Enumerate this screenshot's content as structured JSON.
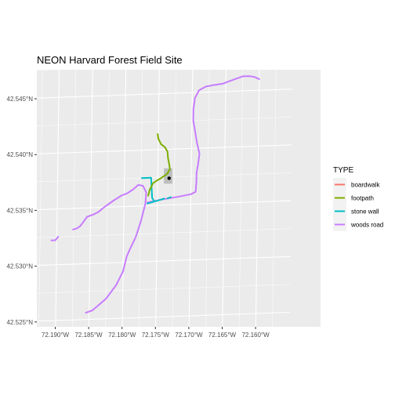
{
  "map": {
    "title": "NEON Harvard Forest Field Site",
    "panel_background": "#ebebeb",
    "grid_color": "#ffffff",
    "y_ticks": [
      {
        "lat": 42.525,
        "label": "42.525°N"
      },
      {
        "lat": 42.53,
        "label": "42.530°N"
      },
      {
        "lat": 42.535,
        "label": "42.535°N"
      },
      {
        "lat": 42.54,
        "label": "42.540°N"
      },
      {
        "lat": 42.545,
        "label": "42.545°N"
      }
    ],
    "x_ticks": [
      {
        "lon": -72.19,
        "label": "72.190°W"
      },
      {
        "lon": -72.185,
        "label": "72.185°W"
      },
      {
        "lon": -72.18,
        "label": "72.180°W"
      },
      {
        "lon": -72.175,
        "label": "72.175°W"
      },
      {
        "lon": -72.17,
        "label": "72.170°W"
      },
      {
        "lon": -72.165,
        "label": "72.165°W"
      },
      {
        "lon": -72.16,
        "label": "72.160°W"
      }
    ],
    "legend": {
      "title": "TYPE",
      "items": [
        {
          "name": "boardwalk",
          "color": "#f8766d"
        },
        {
          "name": "footpath",
          "color": "#7cae00"
        },
        {
          "name": "stone wall",
          "color": "#00bfc4"
        },
        {
          "name": "woods road",
          "color": "#c77cff"
        }
      ]
    },
    "features": {
      "plot_area": {
        "color": "#bdbdbd",
        "lon_range": [
          -72.1741,
          -72.1728
        ],
        "lat_range": [
          42.5369,
          42.5383
        ]
      },
      "tower_point": {
        "lon": -72.1733,
        "lat": 42.5374,
        "color": "#000000"
      },
      "woods_road": [
        [
          [
            -72.1855,
            42.5256
          ],
          [
            -72.1845,
            42.5258
          ],
          [
            -72.1825,
            42.5268
          ],
          [
            -72.181,
            42.528
          ],
          [
            -72.18,
            42.5292
          ],
          [
            -72.1795,
            42.5305
          ],
          [
            -72.179,
            42.5312
          ],
          [
            -72.1782,
            42.5322
          ],
          [
            -72.1775,
            42.5335
          ],
          [
            -72.1768,
            42.5352
          ],
          [
            -72.1767,
            42.5362
          ],
          [
            -72.1772,
            42.5368
          ],
          [
            -72.1779,
            42.5369
          ],
          [
            -72.1787,
            42.5365
          ],
          [
            -72.1795,
            42.5362
          ],
          [
            -72.1804,
            42.536
          ],
          [
            -72.1815,
            42.5356
          ],
          [
            -72.1825,
            42.5352
          ],
          [
            -72.1832,
            42.5349
          ],
          [
            -72.1838,
            42.5346
          ],
          [
            -72.1845,
            42.5344
          ],
          [
            -72.1855,
            42.5342
          ],
          [
            -72.186,
            42.5338
          ],
          [
            -72.1865,
            42.5334
          ],
          [
            -72.187,
            42.5332
          ],
          [
            -72.1876,
            42.5331
          ]
        ],
        [
          [
            -72.1765,
            42.5353
          ],
          [
            -72.1745,
            42.5355
          ],
          [
            -72.172,
            42.5357
          ],
          [
            -72.17,
            42.5359
          ],
          [
            -72.1693,
            42.5361
          ],
          [
            -72.1692,
            42.537
          ],
          [
            -72.1692,
            42.5378
          ],
          [
            -72.169,
            42.5385
          ],
          [
            -72.1688,
            42.5395
          ],
          [
            -72.1692,
            42.5405
          ],
          [
            -72.1695,
            42.5415
          ],
          [
            -72.1698,
            42.5425
          ],
          [
            -72.1698,
            42.5435
          ],
          [
            -72.1696,
            42.5445
          ],
          [
            -72.169,
            42.5452
          ],
          [
            -72.168,
            42.5455
          ],
          [
            -72.167,
            42.5456
          ],
          [
            -72.1655,
            42.5457
          ],
          [
            -72.1645,
            42.5459
          ],
          [
            -72.1635,
            42.5461
          ],
          [
            -72.1625,
            42.5463
          ],
          [
            -72.1615,
            42.5463
          ],
          [
            -72.1607,
            42.5462
          ],
          [
            -72.16,
            42.546
          ]
        ],
        [
          [
            -72.1908,
            42.5322
          ],
          [
            -72.1902,
            42.5322
          ],
          [
            -72.1898,
            42.5325
          ]
        ]
      ],
      "footpath": [
        [
          [
            -72.1751,
            42.5414
          ],
          [
            -72.175,
            42.541
          ],
          [
            -72.1746,
            42.5405
          ],
          [
            -72.174,
            42.5402
          ],
          [
            -72.1736,
            42.5398
          ],
          [
            -72.1735,
            42.5392
          ],
          [
            -72.1733,
            42.5386
          ],
          [
            -72.1732,
            42.5382
          ],
          [
            -72.1736,
            42.5378
          ],
          [
            -72.1746,
            42.5374
          ],
          [
            -72.1752,
            42.5372
          ],
          [
            -72.1757,
            42.537
          ],
          [
            -72.1762,
            42.5364
          ],
          [
            -72.1764,
            42.5359
          ]
        ]
      ],
      "stone_wall": [
        [
          [
            -72.1774,
            42.5375
          ],
          [
            -72.176,
            42.5375
          ],
          [
            -72.1758,
            42.5357
          ],
          [
            -72.1755,
            42.5354
          ]
        ],
        [
          [
            -72.1765,
            42.5352
          ],
          [
            -72.1745,
            42.5355
          ],
          [
            -72.174,
            42.5356
          ]
        ],
        [
          [
            -72.1735,
            42.5356
          ],
          [
            -72.173,
            42.5357
          ]
        ]
      ],
      "boardwalk": []
    }
  }
}
